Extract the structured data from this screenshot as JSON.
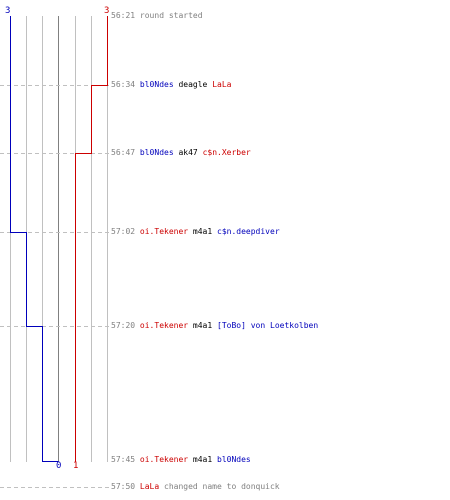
{
  "scores": {
    "blue_top": "3",
    "red_top": "3",
    "blue_bottom": "0",
    "red_bottom": "1"
  },
  "colors": {
    "blue": "#0000bb",
    "red": "#cc0000",
    "grid": "#c0c0c0",
    "center": "#808080",
    "dash": "#c0c0c0",
    "text_gray": "#808080",
    "weapon": "#000000"
  },
  "events": [
    {
      "time": "56:21",
      "text": "round started"
    },
    {
      "time": "56:34",
      "killer": "bl0Ndes",
      "killer_team": "blue",
      "weapon": "deagle",
      "victim": "LaLa",
      "victim_team": "red"
    },
    {
      "time": "56:47",
      "killer": "bl0Ndes",
      "killer_team": "blue",
      "weapon": "ak47",
      "victim": "c$n.Xerber",
      "victim_team": "red"
    },
    {
      "time": "57:02",
      "killer": "oi.Tekener",
      "killer_team": "red",
      "weapon": "m4a1",
      "victim": "c$n.deepdiver",
      "victim_team": "blue"
    },
    {
      "time": "57:20",
      "killer": "oi.Tekener",
      "killer_team": "red",
      "weapon": "m4a1",
      "victim": "[ToBo] von Loetkolben",
      "victim_team": "blue"
    },
    {
      "time": "57:45",
      "killer": "oi.Tekener",
      "killer_team": "red",
      "weapon": "m4a1",
      "victim": "bl0Ndes",
      "victim_team": "blue"
    },
    {
      "time": "57:50",
      "player": "LaLa",
      "player_team": "red",
      "text": "changed name to donquick"
    }
  ]
}
